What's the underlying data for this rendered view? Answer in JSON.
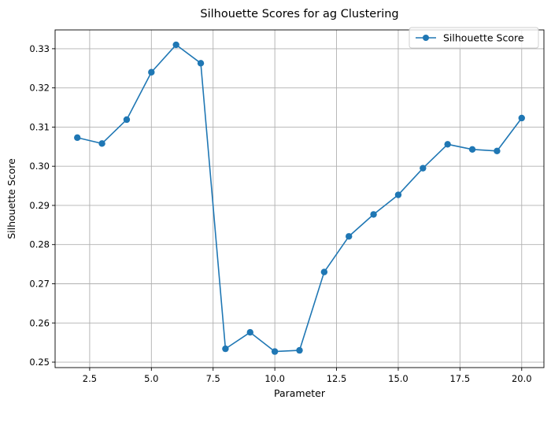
{
  "chart_data": {
    "type": "line",
    "title": "Silhouette Scores for ag Clustering",
    "xlabel": "Parameter",
    "ylabel": "Silhouette Score",
    "xlim": [
      1.1,
      20.9
    ],
    "ylim": [
      0.2486,
      0.3348
    ],
    "xticks": [
      2.5,
      5.0,
      7.5,
      10.0,
      12.5,
      15.0,
      17.5,
      20.0
    ],
    "xtick_labels": [
      "2.5",
      "5.0",
      "7.5",
      "10.0",
      "12.5",
      "15.0",
      "17.5",
      "20.0"
    ],
    "yticks": [
      0.25,
      0.26,
      0.27,
      0.28,
      0.29,
      0.3,
      0.31,
      0.32,
      0.33
    ],
    "ytick_labels": [
      "0.25",
      "0.26",
      "0.27",
      "0.28",
      "0.29",
      "0.30",
      "0.31",
      "0.32",
      "0.33"
    ],
    "grid": true,
    "legend_position": "top-right",
    "series": [
      {
        "name": "Silhouette Score",
        "color": "#1f77b4",
        "marker": "circle",
        "x": [
          2,
          3,
          4,
          5,
          6,
          7,
          8,
          9,
          10,
          11,
          12,
          13,
          14,
          15,
          16,
          17,
          18,
          19,
          20
        ],
        "y": [
          0.3073,
          0.3058,
          0.3119,
          0.324,
          0.331,
          0.3263,
          0.2534,
          0.2576,
          0.2527,
          0.253,
          0.273,
          0.2821,
          0.2877,
          0.2927,
          0.2995,
          0.3056,
          0.3043,
          0.3039,
          0.3123
        ]
      }
    ]
  }
}
